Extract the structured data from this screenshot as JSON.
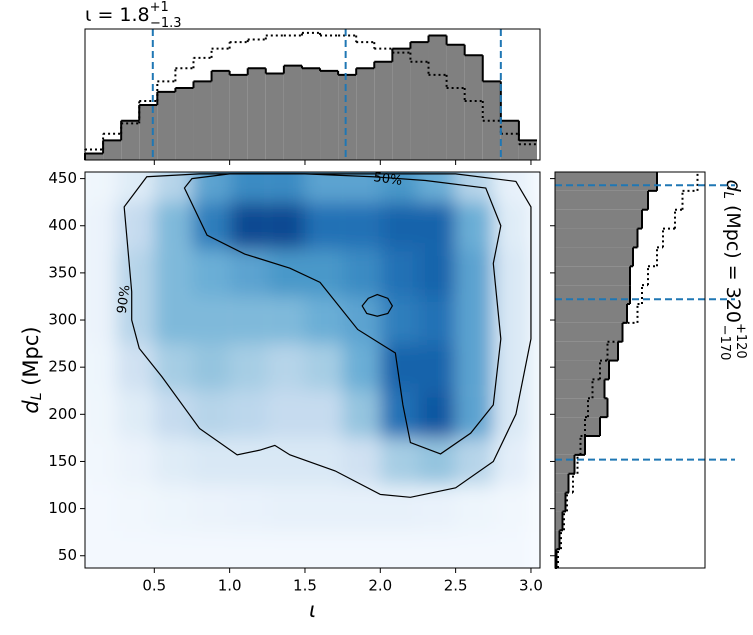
{
  "chart_data": [
    {
      "type": "heatmap",
      "cmap": "Blues",
      "xlabel": "ι",
      "ylabel": {
        "symbol": "d",
        "subscript": "L",
        "unit": " (Mpc)"
      },
      "xlim": [
        0.04,
        3.06
      ],
      "ylim": [
        37,
        457
      ],
      "xticks": [
        {
          "value": 0.5,
          "label": "0.5"
        },
        {
          "value": 1.0,
          "label": "1.0"
        },
        {
          "value": 1.5,
          "label": "1.5"
        },
        {
          "value": 2.0,
          "label": "2.0"
        },
        {
          "value": 2.5,
          "label": "2.5"
        },
        {
          "value": 3.0,
          "label": "3.0"
        }
      ],
      "yticks": [
        50,
        100,
        150,
        200,
        250,
        300,
        350,
        400,
        450
      ],
      "xbins": [
        0,
        0.25,
        0.5,
        0.75,
        1.0,
        1.25,
        1.5,
        1.75,
        2.0,
        2.25,
        2.5,
        2.75,
        3.0
      ],
      "ybins": [
        25,
        75,
        125,
        175,
        225,
        275,
        325,
        375,
        425,
        475
      ],
      "z": [
        [
          0.02,
          0.02,
          0.02,
          0.02,
          0.02,
          0.02,
          0.02,
          0.02,
          0.02,
          0.02,
          0.02,
          0.02
        ],
        [
          0.02,
          0.03,
          0.05,
          0.06,
          0.07,
          0.08,
          0.08,
          0.08,
          0.08,
          0.07,
          0.05,
          0.03
        ],
        [
          0.03,
          0.06,
          0.12,
          0.15,
          0.15,
          0.15,
          0.15,
          0.2,
          0.35,
          0.4,
          0.3,
          0.1
        ],
        [
          0.04,
          0.12,
          0.25,
          0.3,
          0.28,
          0.25,
          0.25,
          0.4,
          0.75,
          0.85,
          0.55,
          0.15
        ],
        [
          0.05,
          0.2,
          0.35,
          0.4,
          0.35,
          0.3,
          0.35,
          0.5,
          0.8,
          0.8,
          0.55,
          0.15
        ],
        [
          0.06,
          0.3,
          0.45,
          0.45,
          0.45,
          0.45,
          0.5,
          0.55,
          0.7,
          0.75,
          0.55,
          0.15
        ],
        [
          0.06,
          0.3,
          0.45,
          0.5,
          0.55,
          0.6,
          0.6,
          0.65,
          0.75,
          0.8,
          0.55,
          0.15
        ],
        [
          0.06,
          0.25,
          0.45,
          0.7,
          0.9,
          0.9,
          0.75,
          0.75,
          0.8,
          0.8,
          0.5,
          0.12
        ],
        [
          0.04,
          0.12,
          0.3,
          0.55,
          0.65,
          0.65,
          0.55,
          0.55,
          0.6,
          0.5,
          0.3,
          0.08
        ]
      ],
      "contours": [
        {
          "label": "90%",
          "x": [
            0.3,
            0.35,
            0.35,
            0.4,
            0.55,
            0.8,
            1.05,
            1.2,
            1.3,
            1.4,
            1.7,
            2.0,
            2.2,
            2.5,
            2.75,
            2.9,
            3.0,
            3.0,
            3.0,
            2.9,
            2.5,
            1.5,
            0.8,
            0.45
          ],
          "y": [
            420,
            330,
            300,
            270,
            240,
            185,
            157,
            162,
            167,
            157,
            140,
            115,
            112,
            122,
            150,
            200,
            280,
            380,
            420,
            447,
            455,
            455,
            455,
            452
          ]
        },
        {
          "label": "50%",
          "x": [
            0.7,
            0.85,
            1.1,
            1.4,
            1.6,
            1.85,
            2.1,
            2.15,
            2.2,
            2.4,
            2.6,
            2.75,
            2.8,
            2.75,
            2.8,
            2.7,
            2.3,
            1.95,
            1.5,
            1.0,
            0.75
          ],
          "y": [
            440,
            390,
            370,
            355,
            340,
            290,
            265,
            210,
            170,
            158,
            180,
            210,
            280,
            360,
            400,
            440,
            448,
            452,
            455,
            455,
            450
          ]
        },
        {
          "x": [
            1.88,
            1.92,
            1.98,
            2.05,
            2.08,
            2.05,
            1.98,
            1.91
          ],
          "y": [
            315,
            323,
            327,
            323,
            315,
            307,
            304,
            307
          ]
        }
      ]
    },
    {
      "type": "histogram",
      "orientation": "vertical",
      "title": {
        "base": "ι = 1.8",
        "upper": "+1",
        "lower": "−1.3"
      },
      "xlim": [
        0.04,
        3.06
      ],
      "ylim": [
        0,
        1
      ],
      "bins": [
        0.04,
        0.16,
        0.28,
        0.4,
        0.52,
        0.64,
        0.76,
        0.88,
        1.0,
        1.12,
        1.24,
        1.36,
        1.48,
        1.6,
        1.72,
        1.84,
        1.96,
        2.08,
        2.2,
        2.32,
        2.44,
        2.56,
        2.68,
        2.8,
        2.92,
        3.04
      ],
      "series": [
        {
          "style": "solid",
          "color": "#808080",
          "values": [
            0.05,
            0.15,
            0.3,
            0.42,
            0.52,
            0.55,
            0.6,
            0.68,
            0.65,
            0.7,
            0.66,
            0.72,
            0.7,
            0.68,
            0.65,
            0.7,
            0.75,
            0.85,
            0.9,
            0.95,
            0.88,
            0.8,
            0.6,
            0.3,
            0.15
          ]
        },
        {
          "style": "dotted",
          "color": "#000000",
          "values": [
            0.08,
            0.2,
            0.28,
            0.45,
            0.6,
            0.7,
            0.78,
            0.85,
            0.9,
            0.92,
            0.95,
            0.95,
            0.97,
            0.95,
            0.95,
            0.9,
            0.85,
            0.82,
            0.75,
            0.65,
            0.55,
            0.45,
            0.3,
            0.2,
            0.12
          ]
        }
      ],
      "vlines": [
        0.49,
        1.77,
        2.8
      ],
      "vline_color": "#1f77b4"
    },
    {
      "type": "histogram",
      "orientation": "horizontal",
      "title": {
        "symbol": "d",
        "subscript": "L",
        "base": " (Mpc) = 320",
        "upper": "+120",
        "lower": "−170"
      },
      "xlim": [
        0,
        1
      ],
      "ylim": [
        37,
        457
      ],
      "bins": [
        37,
        57,
        77,
        97,
        117,
        137,
        157,
        177,
        197,
        217,
        237,
        257,
        277,
        297,
        317,
        337,
        357,
        377,
        397,
        417,
        437,
        457
      ],
      "series": [
        {
          "style": "solid",
          "color": "#808080",
          "values": [
            0.01,
            0.03,
            0.05,
            0.07,
            0.09,
            0.13,
            0.2,
            0.3,
            0.35,
            0.33,
            0.36,
            0.42,
            0.45,
            0.48,
            0.5,
            0.5,
            0.52,
            0.55,
            0.58,
            0.62,
            0.68
          ]
        },
        {
          "style": "dotted",
          "color": "#000000",
          "values": [
            0.02,
            0.04,
            0.06,
            0.08,
            0.12,
            0.15,
            0.17,
            0.2,
            0.22,
            0.25,
            0.3,
            0.35,
            0.45,
            0.55,
            0.58,
            0.62,
            0.68,
            0.72,
            0.8,
            0.85,
            0.95
          ]
        }
      ],
      "vlines": [
        152,
        322,
        443
      ],
      "vline_color": "#1f77b4"
    }
  ]
}
